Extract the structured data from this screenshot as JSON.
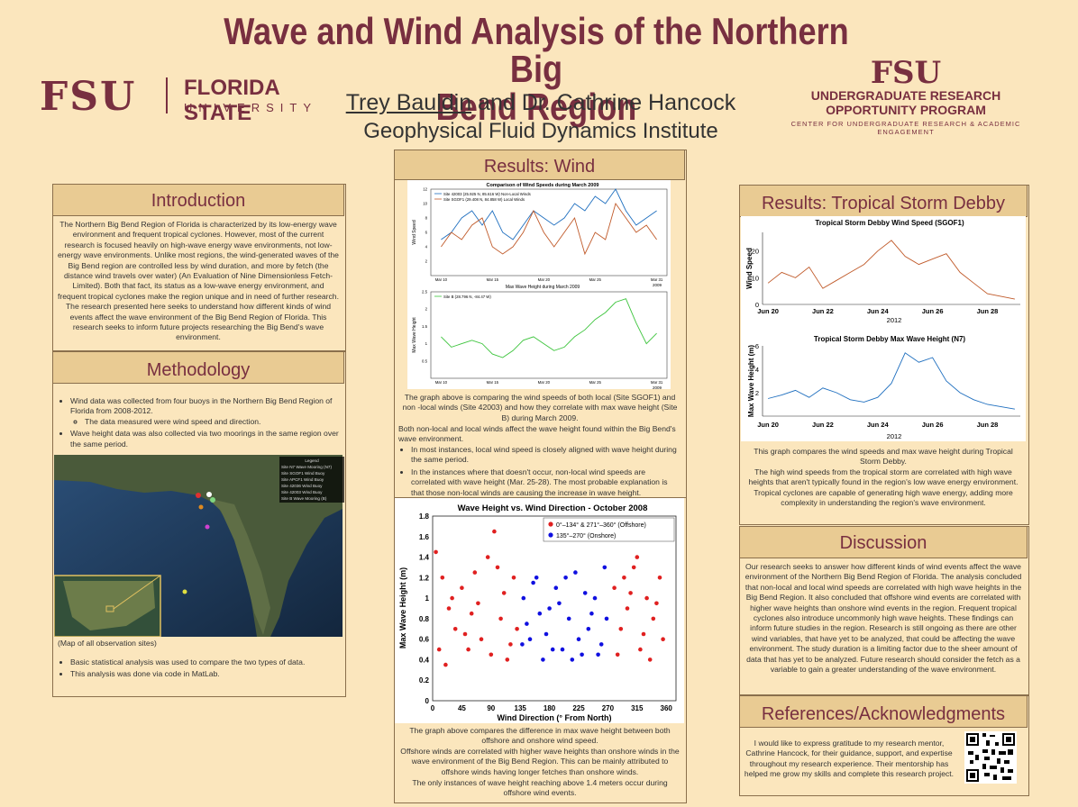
{
  "header": {
    "title_line1": "Wave and Wind Analysis of the Northern Big",
    "title_line2": "Bend Region",
    "author1": "Trey Bauldin",
    "author_rest": " and Dr. Cathrine Hancock",
    "institute": "Geophysical Fluid Dynamics Institute",
    "fsu_logo": {
      "mark": "FSU",
      "name1": "FLORIDA STATE",
      "name2": "UNIVERSITY"
    },
    "urop_logo": {
      "mark": "FSU",
      "line1": "UNDERGRADUATE RESEARCH",
      "line2": "OPPORTUNITY PROGRAM",
      "line3": "CENTER FOR UNDERGRADUATE RESEARCH & ACADEMIC ENGAGEMENT"
    }
  },
  "colors": {
    "garnet": "#782f40",
    "background": "#fbe6bd",
    "header_fill": "#e9cb93",
    "offshore": "#e02020",
    "onshore": "#1010e0",
    "wind_blue": "#1f6fbf",
    "wind_orange": "#c05a2a",
    "wave_green": "#3cc43c"
  },
  "introduction": {
    "heading": "Introduction",
    "body": "The Northern Big Bend Region of Florida is characterized by its low-energy wave environment and frequent tropical cyclones. However, most of the current research is focused heavily on high-wave energy wave environments, not low-energy wave environments. Unlike most regions, the wind-generated waves of the Big Bend region are controlled less by wind duration, and more by fetch (the distance wind travels over water) (An Evaluation of Nine Dimensionless Fetch-Limited). Both that fact, its status as a low-wave energy environment, and frequent tropical cyclones make the region unique and in need of further research. The research presented here seeks to understand how different kinds of wind events affect the wave environment of the Big Bend Region of Florida. This research seeks to inform future projects researching the Big Bend's wave environment."
  },
  "methodology": {
    "heading": "Methodology",
    "bullet1": "Wind data was collected from four buoys in the Northern Big Bend Region of Florida from 2008-2012.",
    "sub1": "The data measured were wind speed and direction.",
    "bullet2": "Wave height data was also collected via two moorings in the same region over the same period.",
    "map_caption": "(Map of all observation sites)",
    "map_legend": {
      "title": "Legend",
      "items": [
        "Site N7 Wave Mooring (N7)",
        "Site SGOF1 Wind Buoy",
        "Site APCF1 Wind Buoy",
        "Site 42036 Wind Buoy",
        "Site 42003 Wind Buoy",
        "Site B Wave Mooring (B)"
      ]
    },
    "bullet3": "Basic statistical analysis was used to compare the two types of data.",
    "bullet4": "This analysis was done via code in MatLab."
  },
  "results_wind": {
    "heading": "Results: Wind",
    "chart1": {
      "title": "Comparison of Wind Speeds during March 2009",
      "ylabel": "Wind Speed",
      "legend": [
        "Site 42003 (25.925 N, 85.616 W) Non-Local Winds",
        "Site SGOF1 (29.408 N, 84.858 W) Local Winds"
      ],
      "xticks": [
        "Mar 10",
        "Mar 15",
        "Mar 20",
        "Mar 25",
        "Mar 31"
      ],
      "year": "2009",
      "yticks": [
        "2",
        "4",
        "6",
        "8",
        "10",
        "12"
      ]
    },
    "chart2": {
      "title": "Max Wave Height during March 2009",
      "ylabel": "Max Wave Height",
      "legend": [
        "Site B (28.796 N, -84.47 W)"
      ],
      "xticks": [
        "Mar 10",
        "Mar 15",
        "Mar 20",
        "Mar 25",
        "Mar 31"
      ],
      "year": "2009",
      "yticks": [
        "0.5",
        "1",
        "1.5",
        "2",
        "2.5"
      ]
    },
    "caption1": "The graph above is comparing the wind speeds of both local (Site SGOF1) and non -local winds (Site 42003) and how they correlate with max wave height (Site B) during March 2009.",
    "caption2": "Both non-local and local winds affect the wave height found within the Big Bend's wave environment.",
    "bullet1": "In most instances, local wind speed is closely aligned with wave height during the same period.",
    "bullet2": "In the instances where that doesn't occur, non-local wind speeds are correlated with wave height (Mar. 25-28). The most probable explanation is that those non-local winds are causing the increase in wave height."
  },
  "chart_data": [
    {
      "type": "line",
      "title": "Comparison of Wind Speeds during March 2009",
      "ylabel": "Wind Speed",
      "x": [
        10,
        11,
        12,
        13,
        14,
        15,
        16,
        17,
        18,
        19,
        20,
        21,
        22,
        23,
        24,
        25,
        26,
        27,
        28,
        29,
        30,
        31
      ],
      "series": [
        {
          "name": "Site 42003 (25.925 N, 85.616 W) Non-Local Winds",
          "values": [
            5,
            6,
            8,
            9,
            7,
            9,
            6,
            5,
            7,
            9,
            8,
            7,
            8,
            10,
            9,
            11,
            10,
            12,
            9,
            7,
            8,
            9
          ]
        },
        {
          "name": "Site SGOF1 (29.408 N, 84.858 W) Local Winds",
          "values": [
            4,
            6,
            5,
            7,
            8,
            4,
            3,
            4,
            6,
            9,
            6,
            4,
            6,
            8,
            3,
            6,
            5,
            10,
            8,
            6,
            7,
            5
          ]
        }
      ],
      "ylim": [
        0,
        12
      ]
    },
    {
      "type": "line",
      "title": "Max Wave Height during March 2009",
      "ylabel": "Max Wave Height",
      "x": [
        10,
        11,
        12,
        13,
        14,
        15,
        16,
        17,
        18,
        19,
        20,
        21,
        22,
        23,
        24,
        25,
        26,
        27,
        28,
        29,
        30,
        31
      ],
      "series": [
        {
          "name": "Site B (28.796 N, -84.47 W)",
          "values": [
            1.2,
            0.9,
            1.0,
            1.1,
            1.0,
            0.7,
            0.6,
            0.8,
            1.1,
            1.2,
            1.0,
            0.8,
            0.9,
            1.2,
            1.4,
            1.7,
            1.9,
            2.2,
            2.3,
            1.6,
            1.0,
            1.3
          ]
        }
      ],
      "ylim": [
        0,
        2.5
      ]
    },
    {
      "type": "scatter",
      "title": "Wave Height vs. Wind Direction - October 2008",
      "xlabel": "Wind Direction (° From North)",
      "ylabel": "Max Wave Height (m)",
      "xticks": [
        0,
        45,
        90,
        135,
        180,
        225,
        270,
        315,
        360
      ],
      "yticks": [
        0,
        0.2,
        0.4,
        0.6,
        0.8,
        1,
        1.2,
        1.4,
        1.6,
        1.8
      ],
      "xlim": [
        0,
        375
      ],
      "ylim": [
        0,
        1.8
      ],
      "series": [
        {
          "name": "0°–134° & 271°–360° (Offshore)",
          "color": "#e02020",
          "points": [
            [
              5,
              1.45
            ],
            [
              15,
              1.2
            ],
            [
              25,
              0.9
            ],
            [
              35,
              0.7
            ],
            [
              45,
              1.1
            ],
            [
              55,
              0.5
            ],
            [
              65,
              1.25
            ],
            [
              75,
              0.6
            ],
            [
              85,
              1.4
            ],
            [
              95,
              1.65
            ],
            [
              105,
              0.8
            ],
            [
              115,
              0.4
            ],
            [
              125,
              1.2
            ],
            [
              130,
              0.7
            ],
            [
              10,
              0.5
            ],
            [
              30,
              1.0
            ],
            [
              50,
              0.65
            ],
            [
              70,
              0.95
            ],
            [
              90,
              0.45
            ],
            [
              110,
              1.05
            ],
            [
              120,
              0.55
            ],
            [
              20,
              0.35
            ],
            [
              60,
              0.85
            ],
            [
              100,
              1.3
            ],
            [
              280,
              1.1
            ],
            [
              290,
              0.7
            ],
            [
              300,
              0.9
            ],
            [
              310,
              1.3
            ],
            [
              320,
              0.5
            ],
            [
              330,
              1.0
            ],
            [
              340,
              0.8
            ],
            [
              350,
              1.2
            ],
            [
              355,
              0.6
            ],
            [
              285,
              0.45
            ],
            [
              305,
              1.05
            ],
            [
              325,
              0.65
            ],
            [
              345,
              0.95
            ],
            [
              315,
              1.4
            ],
            [
              295,
              1.2
            ],
            [
              335,
              0.4
            ]
          ]
        },
        {
          "name": "135°–270° (Onshore)",
          "color": "#1010e0",
          "points": [
            [
              140,
              1.0
            ],
            [
              150,
              0.6
            ],
            [
              160,
              1.2
            ],
            [
              170,
              0.4
            ],
            [
              180,
              0.9
            ],
            [
              190,
              1.1
            ],
            [
              200,
              0.5
            ],
            [
              210,
              0.8
            ],
            [
              220,
              1.25
            ],
            [
              230,
              0.45
            ],
            [
              240,
              0.7
            ],
            [
              250,
              1.0
            ],
            [
              260,
              0.55
            ],
            [
              265,
              1.3
            ],
            [
              145,
              0.75
            ],
            [
              155,
              1.15
            ],
            [
              165,
              0.85
            ],
            [
              175,
              0.65
            ],
            [
              185,
              0.5
            ],
            [
              195,
              0.95
            ],
            [
              205,
              1.2
            ],
            [
              215,
              0.4
            ],
            [
              225,
              0.6
            ],
            [
              235,
              1.05
            ],
            [
              245,
              0.85
            ],
            [
              255,
              0.45
            ],
            [
              268,
              0.8
            ],
            [
              138,
              0.55
            ]
          ]
        }
      ]
    },
    {
      "type": "line",
      "title": "Tropical Storm Debby Wind Speed (SGOF1)",
      "ylabel": "Wind Speed",
      "xticks": [
        "Jun 20",
        "Jun 22",
        "Jun 24",
        "Jun 26",
        "Jun 28"
      ],
      "year": "2012",
      "x": [
        20,
        20.5,
        21,
        21.5,
        22,
        22.5,
        23,
        23.5,
        24,
        24.5,
        25,
        25.5,
        26,
        26.5,
        27,
        27.5,
        28,
        28.5,
        29
      ],
      "series": [
        {
          "name": "SGOF1",
          "values": [
            8,
            12,
            10,
            14,
            6,
            9,
            12,
            15,
            20,
            24,
            18,
            15,
            17,
            19,
            12,
            8,
            4,
            3,
            2
          ]
        }
      ],
      "ylim": [
        0,
        27
      ]
    },
    {
      "type": "line",
      "title": "Tropical Storm Debby Max Wave Height (N7)",
      "ylabel": "Max Wave Height (m)",
      "xticks": [
        "Jun 20",
        "Jun 22",
        "Jun 24",
        "Jun 26",
        "Jun 28"
      ],
      "year": "2012",
      "x": [
        20,
        20.5,
        21,
        21.5,
        22,
        22.5,
        23,
        23.5,
        24,
        24.5,
        25,
        25.5,
        26,
        26.5,
        27,
        27.5,
        28,
        28.5,
        29
      ],
      "series": [
        {
          "name": "N7",
          "values": [
            1.5,
            1.8,
            2.2,
            1.6,
            2.4,
            2.0,
            1.4,
            1.2,
            1.6,
            2.8,
            5.4,
            4.6,
            5.0,
            3.0,
            2.0,
            1.4,
            1.0,
            0.8,
            0.6
          ]
        }
      ],
      "ylim": [
        0,
        6
      ]
    }
  ],
  "results_dir": {
    "chart_title": "Wave Height vs. Wind Direction - October 2008",
    "xlabel": "Wind Direction (° From North)",
    "ylabel": "Max Wave Height (m)",
    "legend_offshore": "0°–134° & 271°–360° (Offshore)",
    "legend_onshore": "135°–270° (Onshore)",
    "caption1": "The graph above compares the difference in max wave height between both offshore and onshore wind speed.",
    "caption2": "Offshore winds are correlated with higher wave heights than onshore winds in the wave environment of the Big Bend Region. This can be mainly attributed to offshore winds having longer fetches than onshore winds.",
    "bullet1": "The only instances of wave height reaching above 1.4 meters occur during offshore wind events."
  },
  "results_debby": {
    "heading": "Results: Tropical Storm Debby",
    "chart1_title": "Tropical Storm Debby Wind Speed (SGOF1)",
    "chart1_ylabel": "Wind Speed",
    "chart2_title": "Tropical Storm Debby Max Wave Height (N7)",
    "chart2_ylabel": "Max Wave Height (m)",
    "year": "2012",
    "caption1": "This graph compares the wind speeds and max wave height during Tropical Storm Debby.",
    "caption2": "The high wind speeds from the tropical storm are correlated with high wave heights that aren't typically found in the region's low wave energy environment. Tropical cyclones are capable of generating high wave energy, adding more complexity in understanding the region's wave environment."
  },
  "discussion": {
    "heading": "Discussion",
    "body": "Our research seeks to answer how different kinds of wind events affect the wave environment of the Northern Big Bend Region of Florida. The analysis concluded that non-local and local wind speeds are correlated with high wave heights in the Big Bend Region. It also concluded that offshore wind events are correlated with higher wave heights than onshore wind events in the region. Frequent tropical cyclones also introduce uncommonly high wave heights. These findings can inform future studies in the region. Research is still ongoing as there are other wind variables, that have yet to be analyzed, that could be affecting the wave environment. The study duration is a limiting factor due to the sheer amount of data that has yet to be analyzed. Future research should consider the fetch as a variable to gain a greater understanding of the wave environment."
  },
  "references": {
    "heading": "References/Acknowledgments",
    "body": "I would like to express gratitude to my research mentor, Cathrine Hancock, for their guidance, support, and expertise throughout my research experience. Their mentorship has helped me grow my skills and complete this research project."
  }
}
